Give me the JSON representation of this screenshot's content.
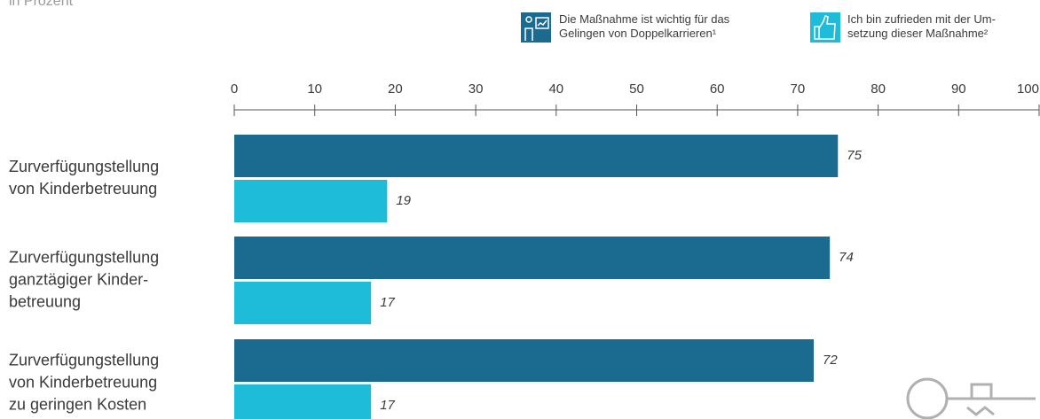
{
  "chart_data": {
    "type": "barh",
    "subtitle": "in Prozent",
    "categories": [
      "Zurverfügungstellung\nvon Kinderbetreuung",
      "Zurverfügungstellung\nganztägiger Kinder-\nbetreuung",
      "Zurverfügungstellung\nvon Kinderbetreuung\nzu geringen Kosten"
    ],
    "series": [
      {
        "name": "Die Maßnahme ist wichtig für das\nGelingen von Doppelkarrieren¹",
        "color": "#1a6b8f",
        "values": [
          75,
          74,
          72
        ]
      },
      {
        "name": "Ich bin zufrieden mit der Um-\nsetzung dieser Maßnahme²",
        "color": "#1fbcd9",
        "values": [
          19,
          17,
          17
        ]
      }
    ],
    "xlim": [
      0,
      100
    ],
    "xticks": [
      0,
      10,
      20,
      30,
      40,
      50,
      60,
      70,
      80,
      90,
      100
    ]
  }
}
